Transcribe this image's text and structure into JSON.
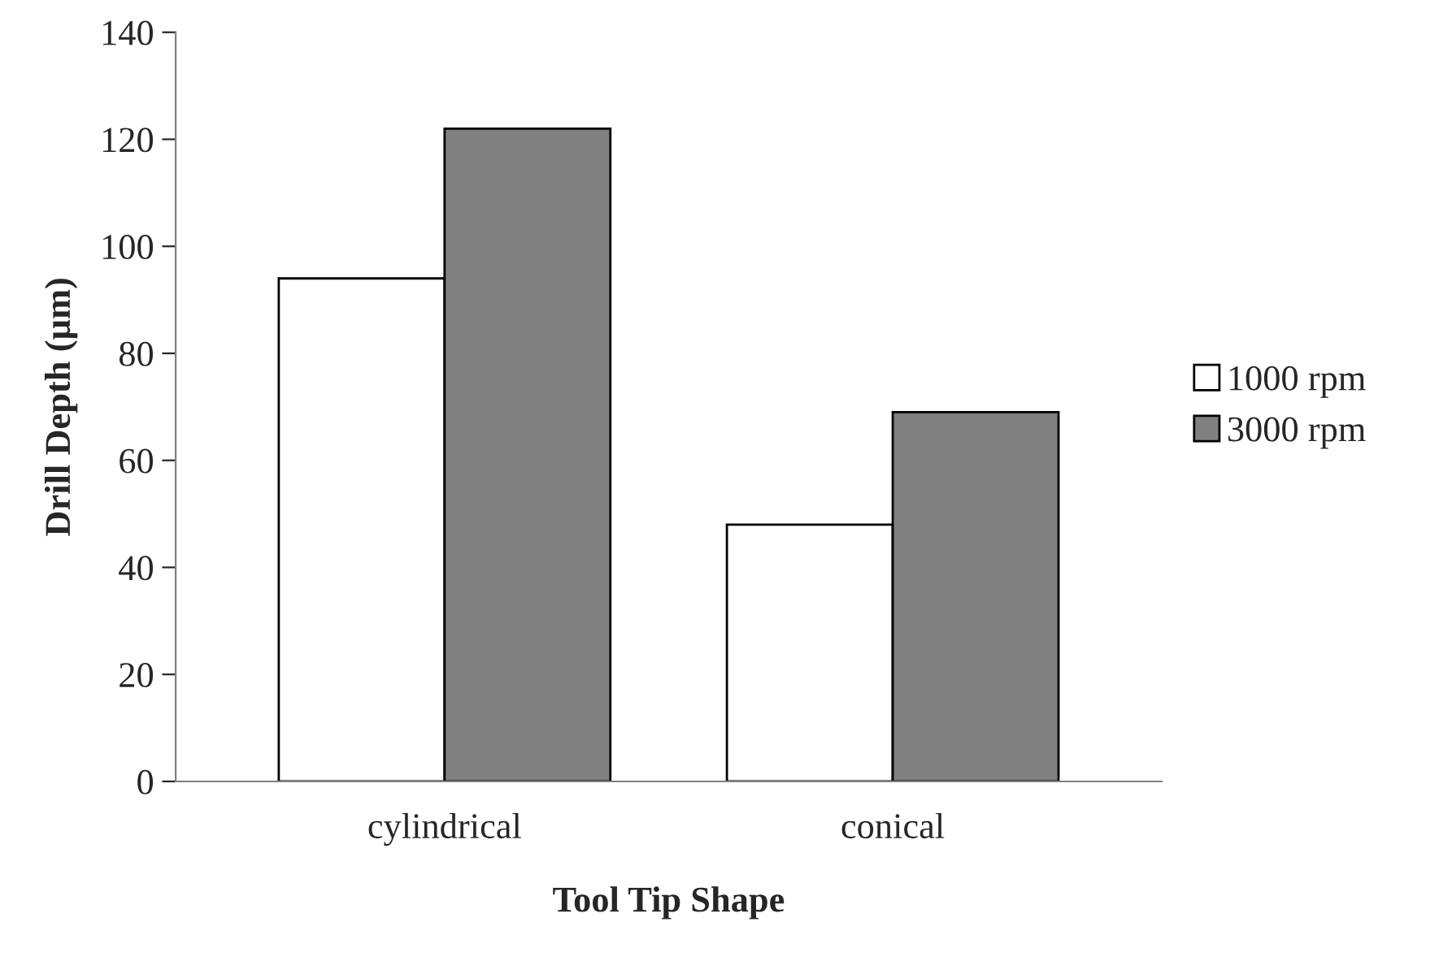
{
  "chart_data": {
    "type": "bar",
    "xlabel": "Tool Tip Shape",
    "ylabel": "Drill Depth (µm)",
    "categories": [
      "cylindrical",
      "conical"
    ],
    "series": [
      {
        "name": "1000 rpm",
        "color": "#ffffff",
        "values": [
          94,
          48
        ]
      },
      {
        "name": "3000 rpm",
        "color": "#808080",
        "values": [
          122,
          69
        ]
      }
    ],
    "ylim": [
      0,
      140
    ],
    "yticks": [
      0,
      20,
      40,
      60,
      80,
      100,
      120,
      140
    ],
    "grid": false,
    "legend": "right"
  }
}
